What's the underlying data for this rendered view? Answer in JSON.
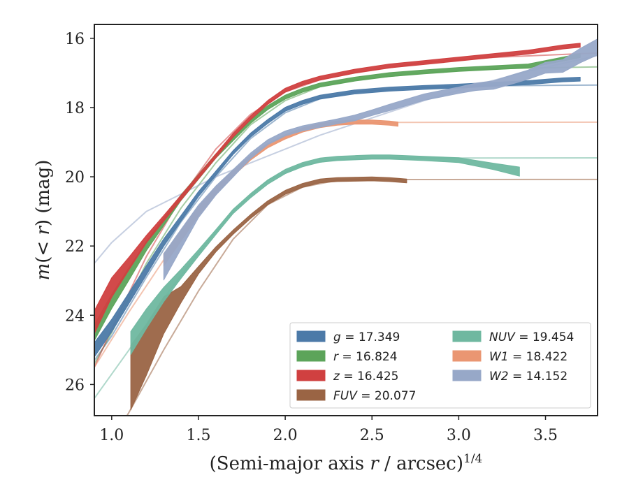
{
  "chart_data": {
    "type": "line",
    "xlabel": "(Semi-major axis r / arcsec)^{1/4}",
    "ylabel": "m(< r) (mag)",
    "xlim": [
      0.9,
      3.8
    ],
    "ylim": [
      26.9,
      15.6
    ],
    "y_inverted": true,
    "x_ticks": [
      1.0,
      1.5,
      2.0,
      2.5,
      3.0,
      3.5
    ],
    "x_tick_labels": [
      "1.0",
      "1.5",
      "2.0",
      "2.5",
      "3.0",
      "3.5"
    ],
    "y_ticks": [
      16,
      18,
      20,
      22,
      24,
      26
    ],
    "y_tick_labels": [
      "16",
      "18",
      "20",
      "22",
      "24",
      "26"
    ],
    "legend_placement": "lower-right",
    "legend_columns": 2,
    "series": [
      {
        "name": "g = 17.349",
        "legend_label": "g = 17.349",
        "color": "#4c7aa8",
        "total_mag": 17.349,
        "x": [
          0.9,
          1.0,
          1.1,
          1.2,
          1.3,
          1.4,
          1.5,
          1.6,
          1.7,
          1.8,
          1.9,
          2.0,
          2.1,
          2.2,
          2.4,
          2.6,
          2.8,
          3.0,
          3.2,
          3.4,
          3.6,
          3.7
        ],
        "y": [
          25.0,
          24.3,
          23.5,
          22.7,
          21.9,
          21.2,
          20.5,
          19.9,
          19.3,
          18.8,
          18.4,
          18.05,
          17.85,
          17.7,
          17.55,
          17.47,
          17.42,
          17.38,
          17.33,
          17.28,
          17.2,
          17.18
        ],
        "width": [
          0.35,
          0.3,
          0.25,
          0.2,
          0.15,
          0.1,
          0.08,
          0.06,
          0.05,
          0.05,
          0.05,
          0.05,
          0.05,
          0.05,
          0.05,
          0.05,
          0.05,
          0.05,
          0.05,
          0.05,
          0.05,
          0.05
        ],
        "model": [
          [
            0.9,
            25.3
          ],
          [
            1.0,
            24.6
          ],
          [
            1.2,
            22.9
          ],
          [
            1.4,
            21.3
          ],
          [
            1.6,
            20.0
          ],
          [
            1.8,
            18.9
          ],
          [
            2.0,
            18.15
          ],
          [
            2.2,
            17.75
          ],
          [
            2.4,
            17.55
          ],
          [
            2.8,
            17.42
          ],
          [
            3.2,
            17.37
          ],
          [
            3.8,
            17.349
          ]
        ]
      },
      {
        "name": "r = 16.824",
        "legend_label": "r = 16.824",
        "color": "#5ca45a",
        "total_mag": 16.824,
        "x": [
          0.9,
          1.0,
          1.1,
          1.2,
          1.3,
          1.4,
          1.5,
          1.6,
          1.7,
          1.8,
          1.9,
          2.0,
          2.1,
          2.2,
          2.4,
          2.6,
          2.8,
          3.0,
          3.2,
          3.4,
          3.6,
          3.7
        ],
        "y": [
          24.5,
          23.6,
          22.8,
          22.0,
          21.3,
          20.6,
          20.0,
          19.4,
          18.9,
          18.4,
          18.0,
          17.7,
          17.5,
          17.35,
          17.18,
          17.05,
          16.97,
          16.9,
          16.85,
          16.8,
          16.6,
          16.5
        ],
        "width": [
          0.4,
          0.35,
          0.3,
          0.2,
          0.15,
          0.1,
          0.08,
          0.06,
          0.05,
          0.05,
          0.05,
          0.05,
          0.05,
          0.05,
          0.05,
          0.05,
          0.05,
          0.05,
          0.05,
          0.05,
          0.05,
          0.05
        ],
        "model": [
          [
            0.9,
            25.4
          ],
          [
            1.0,
            24.5
          ],
          [
            1.2,
            22.5
          ],
          [
            1.4,
            20.9
          ],
          [
            1.6,
            19.6
          ],
          [
            1.8,
            18.5
          ],
          [
            2.0,
            17.8
          ],
          [
            2.2,
            17.4
          ],
          [
            2.4,
            17.2
          ],
          [
            2.8,
            17.0
          ],
          [
            3.2,
            16.88
          ],
          [
            3.8,
            16.824
          ]
        ]
      },
      {
        "name": "z = 16.425",
        "legend_label": "z = 16.425",
        "color": "#d04040",
        "total_mag": 16.425,
        "x": [
          0.9,
          1.0,
          1.1,
          1.2,
          1.3,
          1.4,
          1.5,
          1.6,
          1.7,
          1.8,
          1.9,
          2.0,
          2.1,
          2.2,
          2.4,
          2.6,
          2.8,
          3.0,
          3.2,
          3.4,
          3.6,
          3.7
        ],
        "y": [
          24.2,
          23.2,
          22.5,
          21.8,
          21.2,
          20.6,
          20.0,
          19.4,
          18.8,
          18.3,
          17.85,
          17.5,
          17.3,
          17.15,
          16.95,
          16.8,
          16.7,
          16.6,
          16.5,
          16.4,
          16.25,
          16.2
        ],
        "width": [
          0.6,
          0.5,
          0.3,
          0.15,
          0.1,
          0.08,
          0.06,
          0.05,
          0.05,
          0.05,
          0.05,
          0.05,
          0.05,
          0.05,
          0.05,
          0.05,
          0.05,
          0.05,
          0.05,
          0.05,
          0.05,
          0.05
        ],
        "model": [
          [
            0.9,
            25.5
          ],
          [
            1.0,
            24.4
          ],
          [
            1.2,
            22.3
          ],
          [
            1.4,
            20.6
          ],
          [
            1.6,
            19.2
          ],
          [
            1.8,
            18.2
          ],
          [
            2.0,
            17.55
          ],
          [
            2.2,
            17.2
          ],
          [
            2.4,
            17.0
          ],
          [
            2.8,
            16.7
          ],
          [
            3.2,
            16.55
          ],
          [
            3.8,
            16.425
          ]
        ]
      },
      {
        "name": "FUV = 20.077",
        "legend_label": "FUV = 20.077",
        "color": "#9a6444",
        "total_mag": 20.077,
        "x": [
          1.11,
          1.2,
          1.3,
          1.4,
          1.5,
          1.6,
          1.7,
          1.8,
          1.9,
          2.0,
          2.1,
          2.2,
          2.3,
          2.4,
          2.5,
          2.6,
          2.7
        ],
        "y": [
          25.8,
          25.0,
          24.0,
          23.4,
          22.7,
          22.1,
          21.6,
          21.15,
          20.75,
          20.45,
          20.25,
          20.12,
          20.08,
          20.07,
          20.06,
          20.08,
          20.12
        ],
        "width": [
          1.8,
          1.4,
          1.0,
          0.4,
          0.15,
          0.08,
          0.06,
          0.05,
          0.05,
          0.05,
          0.05,
          0.05,
          0.05,
          0.05,
          0.05,
          0.05,
          0.05
        ],
        "model": [
          [
            0.9,
            28.5
          ],
          [
            1.1,
            26.8
          ],
          [
            1.3,
            25.0
          ],
          [
            1.5,
            23.3
          ],
          [
            1.7,
            21.8
          ],
          [
            1.9,
            20.8
          ],
          [
            2.1,
            20.3
          ],
          [
            2.3,
            20.1
          ],
          [
            2.5,
            20.08
          ],
          [
            3.8,
            20.077
          ]
        ]
      },
      {
        "name": "NUV = 19.454",
        "legend_label": "NUV = 19.454",
        "color": "#6fb8a0",
        "total_mag": 19.454,
        "x": [
          1.11,
          1.2,
          1.3,
          1.4,
          1.5,
          1.6,
          1.7,
          1.8,
          1.9,
          2.0,
          2.1,
          2.2,
          2.3,
          2.4,
          2.5,
          2.6,
          2.7,
          2.8,
          3.0,
          3.2,
          3.35
        ],
        "y": [
          24.8,
          24.1,
          23.4,
          22.8,
          22.2,
          21.6,
          21.0,
          20.55,
          20.15,
          19.85,
          19.65,
          19.52,
          19.47,
          19.45,
          19.43,
          19.43,
          19.45,
          19.47,
          19.52,
          19.7,
          19.85
        ],
        "width": [
          0.6,
          0.5,
          0.35,
          0.2,
          0.12,
          0.08,
          0.06,
          0.06,
          0.06,
          0.06,
          0.06,
          0.06,
          0.06,
          0.06,
          0.06,
          0.06,
          0.06,
          0.06,
          0.08,
          0.12,
          0.2
        ],
        "model": [
          [
            0.9,
            26.4
          ],
          [
            1.1,
            25.0
          ],
          [
            1.3,
            23.5
          ],
          [
            1.5,
            22.2
          ],
          [
            1.7,
            21.0
          ],
          [
            1.9,
            20.1
          ],
          [
            2.1,
            19.65
          ],
          [
            2.3,
            19.5
          ],
          [
            2.6,
            19.46
          ],
          [
            3.8,
            19.454
          ]
        ]
      },
      {
        "name": "W1 = 18.422",
        "legend_label": "W1 = 18.422",
        "color": "#ea9672",
        "total_mag": 18.422,
        "x": [
          1.3,
          1.4,
          1.5,
          1.6,
          1.7,
          1.8,
          1.9,
          2.0,
          2.1,
          2.2,
          2.3,
          2.4,
          2.5,
          2.6,
          2.65
        ],
        "y": [
          22.4,
          21.7,
          21.0,
          20.4,
          19.9,
          19.45,
          19.1,
          18.85,
          18.65,
          18.52,
          18.45,
          18.42,
          18.42,
          18.45,
          18.48
        ],
        "width": [
          0.3,
          0.25,
          0.2,
          0.15,
          0.1,
          0.08,
          0.06,
          0.06,
          0.06,
          0.06,
          0.06,
          0.06,
          0.06,
          0.06,
          0.06
        ],
        "model": [
          [
            0.9,
            25.5
          ],
          [
            1.1,
            23.9
          ],
          [
            1.3,
            22.4
          ],
          [
            1.5,
            21.0
          ],
          [
            1.7,
            19.9
          ],
          [
            1.9,
            19.05
          ],
          [
            2.1,
            18.62
          ],
          [
            2.3,
            18.47
          ],
          [
            2.6,
            18.43
          ],
          [
            3.8,
            18.422
          ]
        ]
      },
      {
        "name": "W2 = 14.152",
        "legend_label": "W2 = 14.152",
        "color": "#97a8c8",
        "total_mag": 14.152,
        "x": [
          1.3,
          1.4,
          1.5,
          1.6,
          1.7,
          1.8,
          1.9,
          2.0,
          2.1,
          2.2,
          2.3,
          2.4,
          2.5,
          2.6,
          2.7,
          2.8,
          2.9,
          3.0,
          3.1,
          3.2,
          3.3,
          3.4,
          3.5,
          3.6,
          3.7,
          3.8
        ],
        "y": [
          22.6,
          21.8,
          21.0,
          20.4,
          19.9,
          19.4,
          19.0,
          18.75,
          18.6,
          18.5,
          18.4,
          18.3,
          18.15,
          18.0,
          17.85,
          17.7,
          17.6,
          17.5,
          17.4,
          17.35,
          17.2,
          17.05,
          16.85,
          16.8,
          16.5,
          16.25
        ],
        "width": [
          0.7,
          0.5,
          0.3,
          0.2,
          0.15,
          0.1,
          0.08,
          0.08,
          0.08,
          0.08,
          0.08,
          0.1,
          0.1,
          0.12,
          0.12,
          0.12,
          0.12,
          0.12,
          0.15,
          0.18,
          0.2,
          0.2,
          0.25,
          0.3,
          0.35,
          0.4
        ],
        "model": [
          [
            0.9,
            22.5
          ],
          [
            1.0,
            21.9
          ],
          [
            1.2,
            21.0
          ],
          [
            1.4,
            20.5
          ],
          [
            1.6,
            20.0
          ],
          [
            1.8,
            19.6
          ],
          [
            2.0,
            19.2
          ],
          [
            2.2,
            18.8
          ],
          [
            2.5,
            18.3
          ],
          [
            2.8,
            17.8
          ],
          [
            3.1,
            17.35
          ],
          [
            3.4,
            16.95
          ],
          [
            3.8,
            16.5
          ]
        ]
      }
    ]
  }
}
